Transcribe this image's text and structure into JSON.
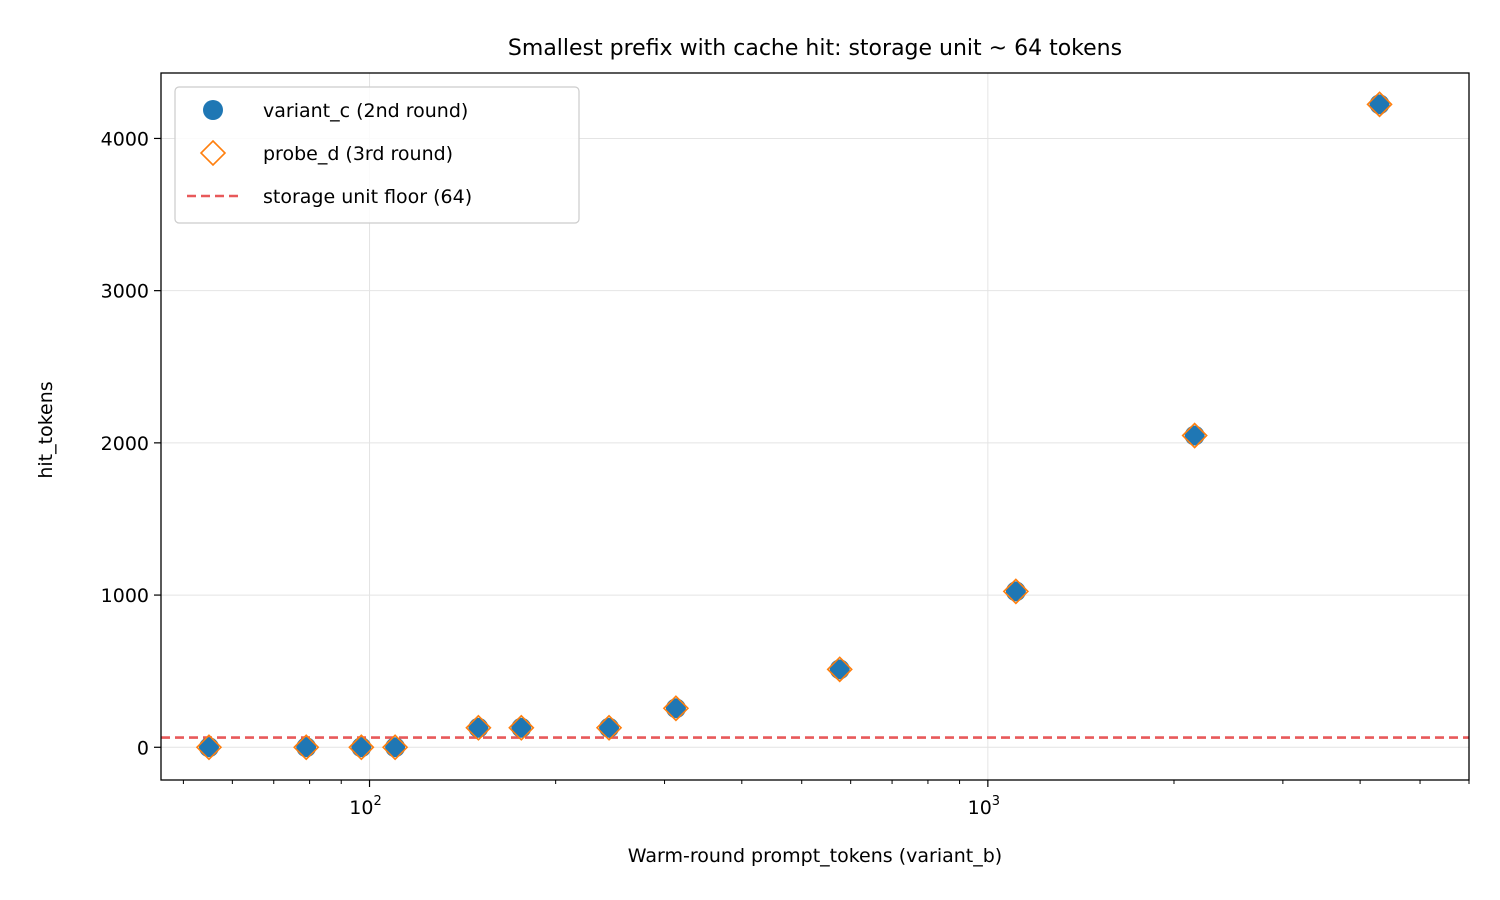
{
  "chart_data": {
    "type": "scatter",
    "title": "Smallest prefix with cache hit: storage unit ~ 64 tokens",
    "xlabel": "Warm-round prompt_tokens (variant_b)",
    "ylabel": "hit_tokens",
    "xscale": "log",
    "xlim": [
      46,
      6000
    ],
    "ylim": [
      -215,
      4430
    ],
    "xticks": [
      {
        "value": 100,
        "base": "10",
        "exp": "2"
      },
      {
        "value": 1000,
        "base": "10",
        "exp": "3"
      }
    ],
    "yticks": [
      0,
      1000,
      2000,
      3000,
      4000
    ],
    "grid": true,
    "legend_position": "top-left",
    "series": [
      {
        "name": "variant_c (2nd round)",
        "marker": "circle-filled",
        "color": "#1f77b4",
        "x": [
          55,
          79,
          97,
          110,
          150,
          176,
          244,
          313,
          576,
          1110,
          2160,
          4300
        ],
        "y": [
          0,
          0,
          0,
          0,
          128,
          128,
          128,
          256,
          512,
          1024,
          2048,
          4224
        ]
      },
      {
        "name": "probe_d (3rd round)",
        "marker": "diamond-open",
        "color": "#ff7f0e",
        "x": [
          55,
          79,
          97,
          110,
          150,
          176,
          244,
          313,
          576,
          1110,
          2160,
          4300
        ],
        "y": [
          0,
          0,
          0,
          0,
          128,
          128,
          128,
          256,
          512,
          1024,
          2048,
          4224
        ]
      }
    ],
    "reference_line": {
      "name": "storage unit floor (64)",
      "y": 64,
      "style": "dashed",
      "color": "#e8595a"
    }
  }
}
